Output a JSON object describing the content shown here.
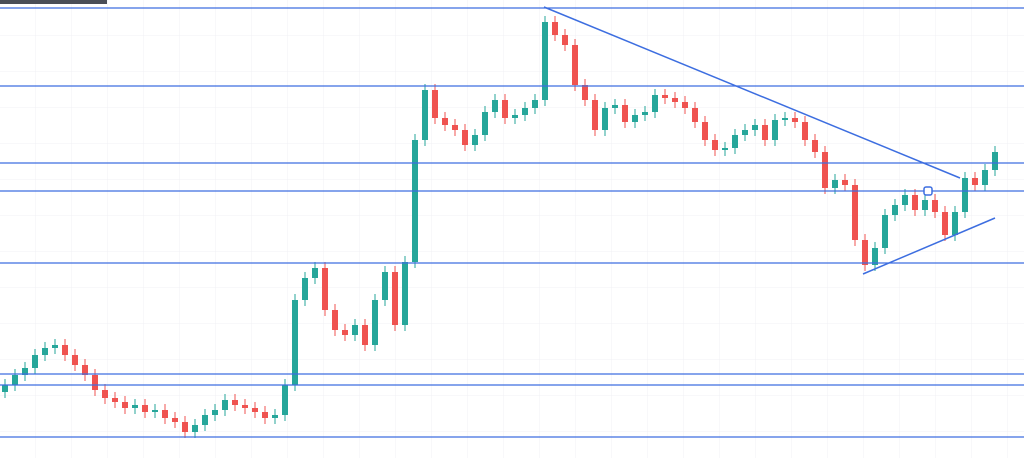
{
  "chart_data": {
    "type": "candlestick",
    "xlim": [
      -0.5,
      101.9
    ],
    "ylim": [
      0,
      458
    ],
    "grid": true,
    "up_color": "#26a69a",
    "down_color": "#ef5350",
    "line_color": "#3d6ee0",
    "open": [
      66,
      73,
      83,
      90,
      103,
      110,
      113,
      103,
      93,
      83,
      68,
      60,
      56,
      50,
      53,
      46,
      48,
      40,
      36,
      26,
      33,
      43,
      48,
      58,
      53,
      50,
      46,
      40,
      43,
      73,
      158,
      180,
      190,
      148,
      128,
      123,
      133,
      113,
      158,
      186,
      133,
      196,
      318,
      368,
      340,
      333,
      328,
      313,
      323,
      346,
      358,
      340,
      343,
      350,
      358,
      436,
      423,
      413,
      373,
      358,
      328,
      350,
      353,
      336,
      343,
      346,
      363,
      360,
      356,
      350,
      336,
      318,
      308,
      310,
      323,
      328,
      333,
      318,
      338,
      340,
      336,
      318,
      306,
      270,
      278,
      273,
      218,
      193,
      210,
      243,
      253,
      263,
      248,
      258,
      246,
      223,
      246,
      280,
      273,
      288
    ],
    "high": [
      79,
      89,
      96,
      109,
      116,
      119,
      119,
      109,
      99,
      89,
      74,
      66,
      62,
      59,
      59,
      54,
      54,
      46,
      42,
      39,
      49,
      54,
      64,
      64,
      59,
      56,
      52,
      49,
      79,
      164,
      186,
      196,
      196,
      154,
      134,
      139,
      139,
      164,
      192,
      192,
      202,
      324,
      374,
      374,
      346,
      339,
      334,
      329,
      352,
      364,
      364,
      349,
      356,
      364,
      442,
      442,
      429,
      419,
      379,
      364,
      356,
      359,
      359,
      349,
      352,
      369,
      369,
      366,
      362,
      356,
      342,
      324,
      316,
      329,
      334,
      339,
      339,
      344,
      346,
      346,
      342,
      324,
      312,
      284,
      284,
      279,
      224,
      216,
      249,
      259,
      269,
      269,
      264,
      264,
      252,
      252,
      286,
      286,
      294,
      312
    ],
    "low": [
      60,
      67,
      77,
      84,
      97,
      104,
      97,
      87,
      77,
      62,
      54,
      50,
      44,
      44,
      40,
      40,
      34,
      30,
      20,
      20,
      27,
      37,
      42,
      47,
      44,
      40,
      34,
      34,
      37,
      67,
      152,
      174,
      142,
      122,
      117,
      117,
      107,
      107,
      152,
      127,
      127,
      190,
      312,
      334,
      327,
      322,
      307,
      307,
      317,
      340,
      334,
      334,
      337,
      344,
      352,
      417,
      407,
      367,
      352,
      322,
      322,
      344,
      330,
      330,
      337,
      340,
      354,
      350,
      344,
      330,
      312,
      302,
      302,
      304,
      317,
      322,
      312,
      312,
      332,
      330,
      312,
      300,
      264,
      264,
      267,
      212,
      187,
      187,
      204,
      237,
      247,
      242,
      242,
      240,
      217,
      217,
      240,
      267,
      267,
      282
    ],
    "close": [
      73,
      83,
      90,
      103,
      110,
      113,
      103,
      93,
      83,
      68,
      60,
      56,
      50,
      53,
      46,
      48,
      40,
      36,
      26,
      33,
      43,
      48,
      58,
      53,
      50,
      46,
      40,
      43,
      73,
      158,
      180,
      190,
      148,
      128,
      123,
      133,
      113,
      158,
      186,
      133,
      196,
      318,
      368,
      340,
      333,
      328,
      313,
      323,
      346,
      358,
      340,
      343,
      350,
      358,
      436,
      423,
      413,
      373,
      358,
      328,
      350,
      353,
      336,
      343,
      346,
      363,
      360,
      356,
      350,
      336,
      318,
      308,
      310,
      323,
      328,
      333,
      318,
      338,
      340,
      336,
      318,
      306,
      270,
      278,
      273,
      218,
      193,
      210,
      243,
      253,
      263,
      248,
      258,
      246,
      223,
      246,
      280,
      273,
      288,
      306
    ],
    "levels": [
      450,
      372,
      295,
      267,
      195,
      84,
      73,
      21
    ],
    "trendlines": [
      {
        "x": [
          53.9,
          95.5
        ],
        "y": [
          451,
          280
        ]
      },
      {
        "x": [
          85.8,
          99
        ],
        "y": [
          184,
          240
        ]
      }
    ],
    "marker": {
      "x": 92.3,
      "y": 267
    }
  }
}
